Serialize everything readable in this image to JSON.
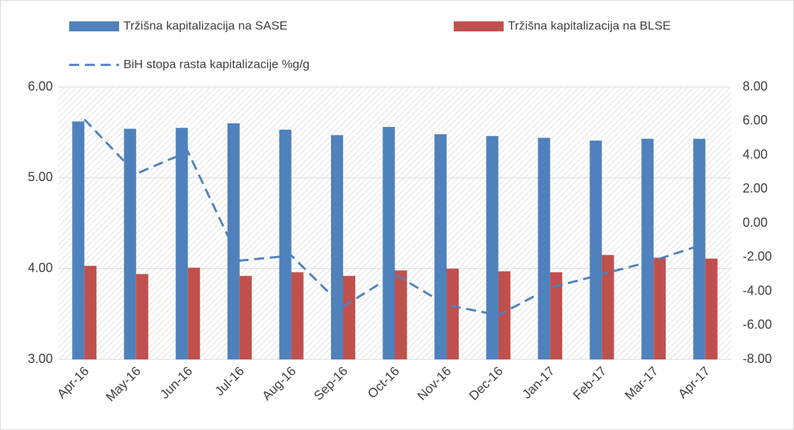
{
  "chart_data": {
    "type": "bar",
    "categories": [
      "Apr-16",
      "May-16",
      "Jun-16",
      "Jul-16",
      "Aug-16",
      "Sep-16",
      "Oct-16",
      "Nov-16",
      "Dec-16",
      "Jan-17",
      "Feb-17",
      "Mar-17",
      "Apr-17"
    ],
    "series": [
      {
        "name": "Tržišna kapitalizacija na SASE",
        "color": "#4f81bd",
        "type": "bar",
        "values": [
          5.62,
          5.54,
          5.55,
          5.6,
          5.53,
          5.47,
          5.56,
          5.48,
          5.46,
          5.44,
          5.41,
          5.43,
          5.43
        ]
      },
      {
        "name": "Tržišna kapitalizacija na BLSE",
        "color": "#c0504d",
        "type": "bar",
        "values": [
          4.03,
          3.94,
          4.01,
          3.92,
          3.96,
          3.92,
          3.98,
          4.0,
          3.97,
          3.96,
          4.15,
          4.12,
          4.11
        ]
      },
      {
        "name": "BiH stopa rasta kapitalizacije %g/g",
        "color": "#4f81bd",
        "type": "line",
        "dashed": true,
        "axis": "y2",
        "values": [
          6.1,
          2.9,
          4.2,
          -2.2,
          -1.9,
          -4.9,
          -3.0,
          -4.8,
          -5.4,
          -3.8,
          -3.0,
          -2.2,
          -1.2
        ]
      }
    ],
    "ylim": [
      3,
      6
    ],
    "yticks": [
      {
        "value": 3,
        "label": "3.00"
      },
      {
        "value": 4,
        "label": "4.00"
      },
      {
        "value": 5,
        "label": "5.00"
      },
      {
        "value": 6,
        "label": "6.00"
      }
    ],
    "y2lim": [
      -8,
      8
    ],
    "y2ticks": [
      {
        "value": -8,
        "label": "-8.00"
      },
      {
        "value": -6,
        "label": "-6.00"
      },
      {
        "value": -4,
        "label": "-4.00"
      },
      {
        "value": -2,
        "label": "-2.00"
      },
      {
        "value": 0,
        "label": "0.00"
      },
      {
        "value": 2,
        "label": "2.00"
      },
      {
        "value": 4,
        "label": "4.00"
      },
      {
        "value": 6,
        "label": "6.00"
      },
      {
        "value": 8,
        "label": "8.00"
      }
    ],
    "grid": true
  }
}
